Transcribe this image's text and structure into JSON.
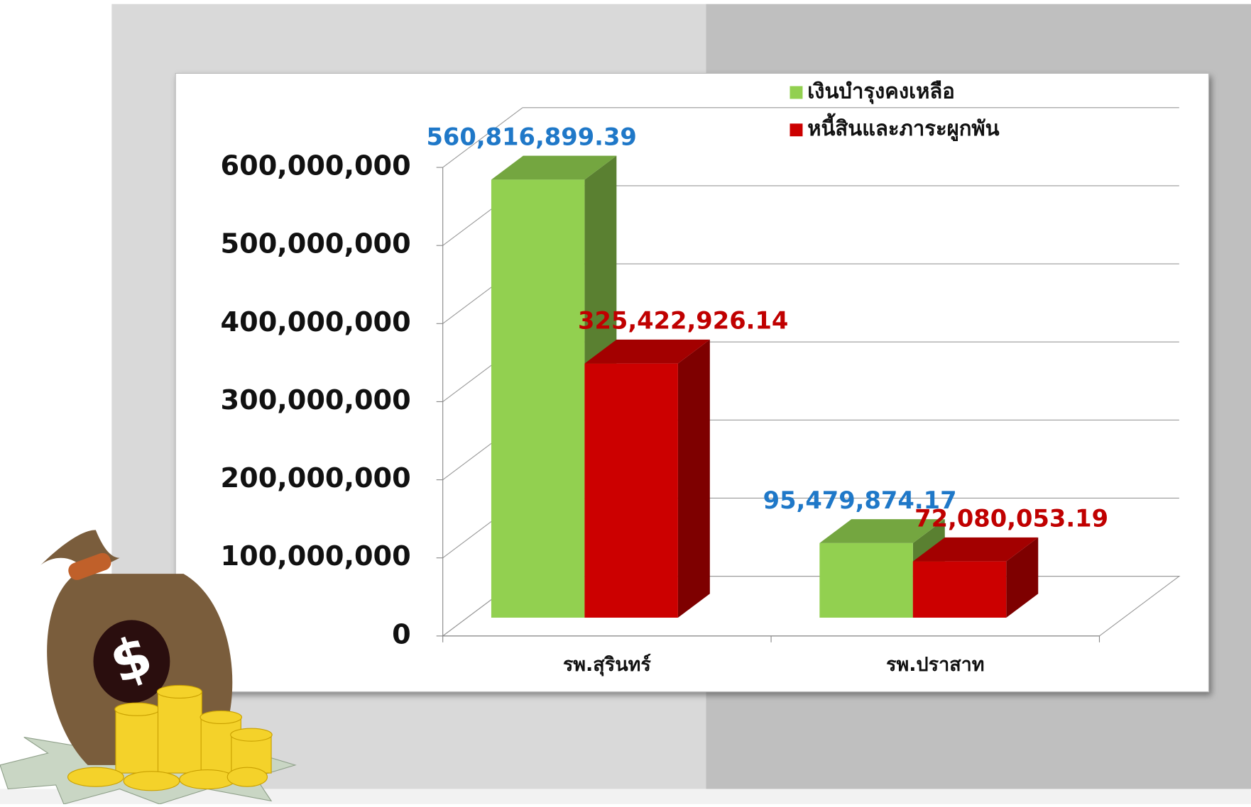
{
  "chart_data": {
    "type": "bar3d",
    "categories": [
      "รพ.สุรินทร์",
      "รพ.ปราสาท"
    ],
    "series": [
      {
        "name": "เงินบำรุงคงเหลือ",
        "color": "#92d050",
        "values": [
          560816899.39,
          95479874.17
        ],
        "value_labels": [
          "560,816,899.39",
          "95,479,874.17"
        ]
      },
      {
        "name": "หนี้สินและภาระผูกพัน",
        "color": "#cc0000",
        "values": [
          325422926.14,
          72080053.19
        ],
        "value_labels": [
          "325,422,926.14",
          "72,080,053.19"
        ]
      }
    ],
    "ylim": [
      0,
      600000000
    ],
    "yticks": [
      0,
      {
        "value": 100000000,
        "label": "100,000,000"
      },
      {
        "value": 200000000,
        "label": "200,000,000"
      },
      {
        "value": 300000000,
        "label": "300,000,000"
      },
      {
        "value": 400000000,
        "label": "400,000,000"
      },
      {
        "value": 500000000,
        "label": "500,000,000"
      },
      {
        "value": 600000000,
        "label": "600,000,000"
      }
    ],
    "grid": true,
    "legend": "top-right"
  }
}
